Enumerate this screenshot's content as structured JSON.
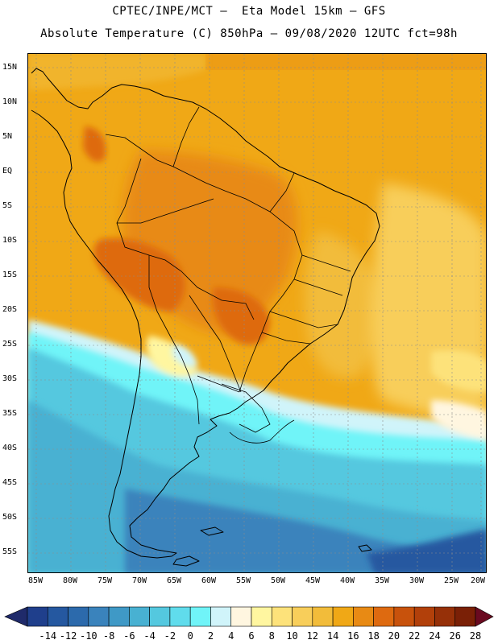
{
  "header": {
    "line1": "CPTEC/INPE/MCT –  Eta Model 15km – GFS",
    "line2": "Absolute Temperature (C) 850hPa – 09/08/2020 12UTC fct=98h"
  },
  "map": {
    "lat_labels": [
      "15N",
      "10N",
      "5N",
      "EQ",
      "5S",
      "10S",
      "15S",
      "20S",
      "25S",
      "30S",
      "35S",
      "40S",
      "45S",
      "50S",
      "55S"
    ],
    "lon_labels": [
      "85W",
      "80W",
      "75W",
      "70W",
      "65W",
      "60W",
      "55W",
      "50W",
      "45W",
      "40W",
      "35W",
      "30W",
      "25W",
      "20W"
    ]
  },
  "colorbar": {
    "ticks": [
      "-14",
      "-12",
      "-10",
      "-8",
      "-6",
      "-4",
      "-2",
      "0",
      "2",
      "4",
      "6",
      "8",
      "10",
      "12",
      "14",
      "16",
      "18",
      "20",
      "22",
      "24",
      "26",
      "28"
    ],
    "colors": [
      "#1f3f8c",
      "#2558a0",
      "#2c6aac",
      "#3a83bc",
      "#3f99c6",
      "#48b1d2",
      "#54c8df",
      "#60dcec",
      "#70f4f8",
      "#d0f4fa",
      "#fff6e0",
      "#fff6a0",
      "#fde27a",
      "#f8ce5a",
      "#f2bc3a",
      "#f0a816",
      "#e88a14",
      "#de6a10",
      "#c8520c",
      "#b2400a",
      "#963008",
      "#7a2006"
    ],
    "low_arrow_color": "#1f2a6a",
    "high_arrow_color": "#6a0a20"
  }
}
